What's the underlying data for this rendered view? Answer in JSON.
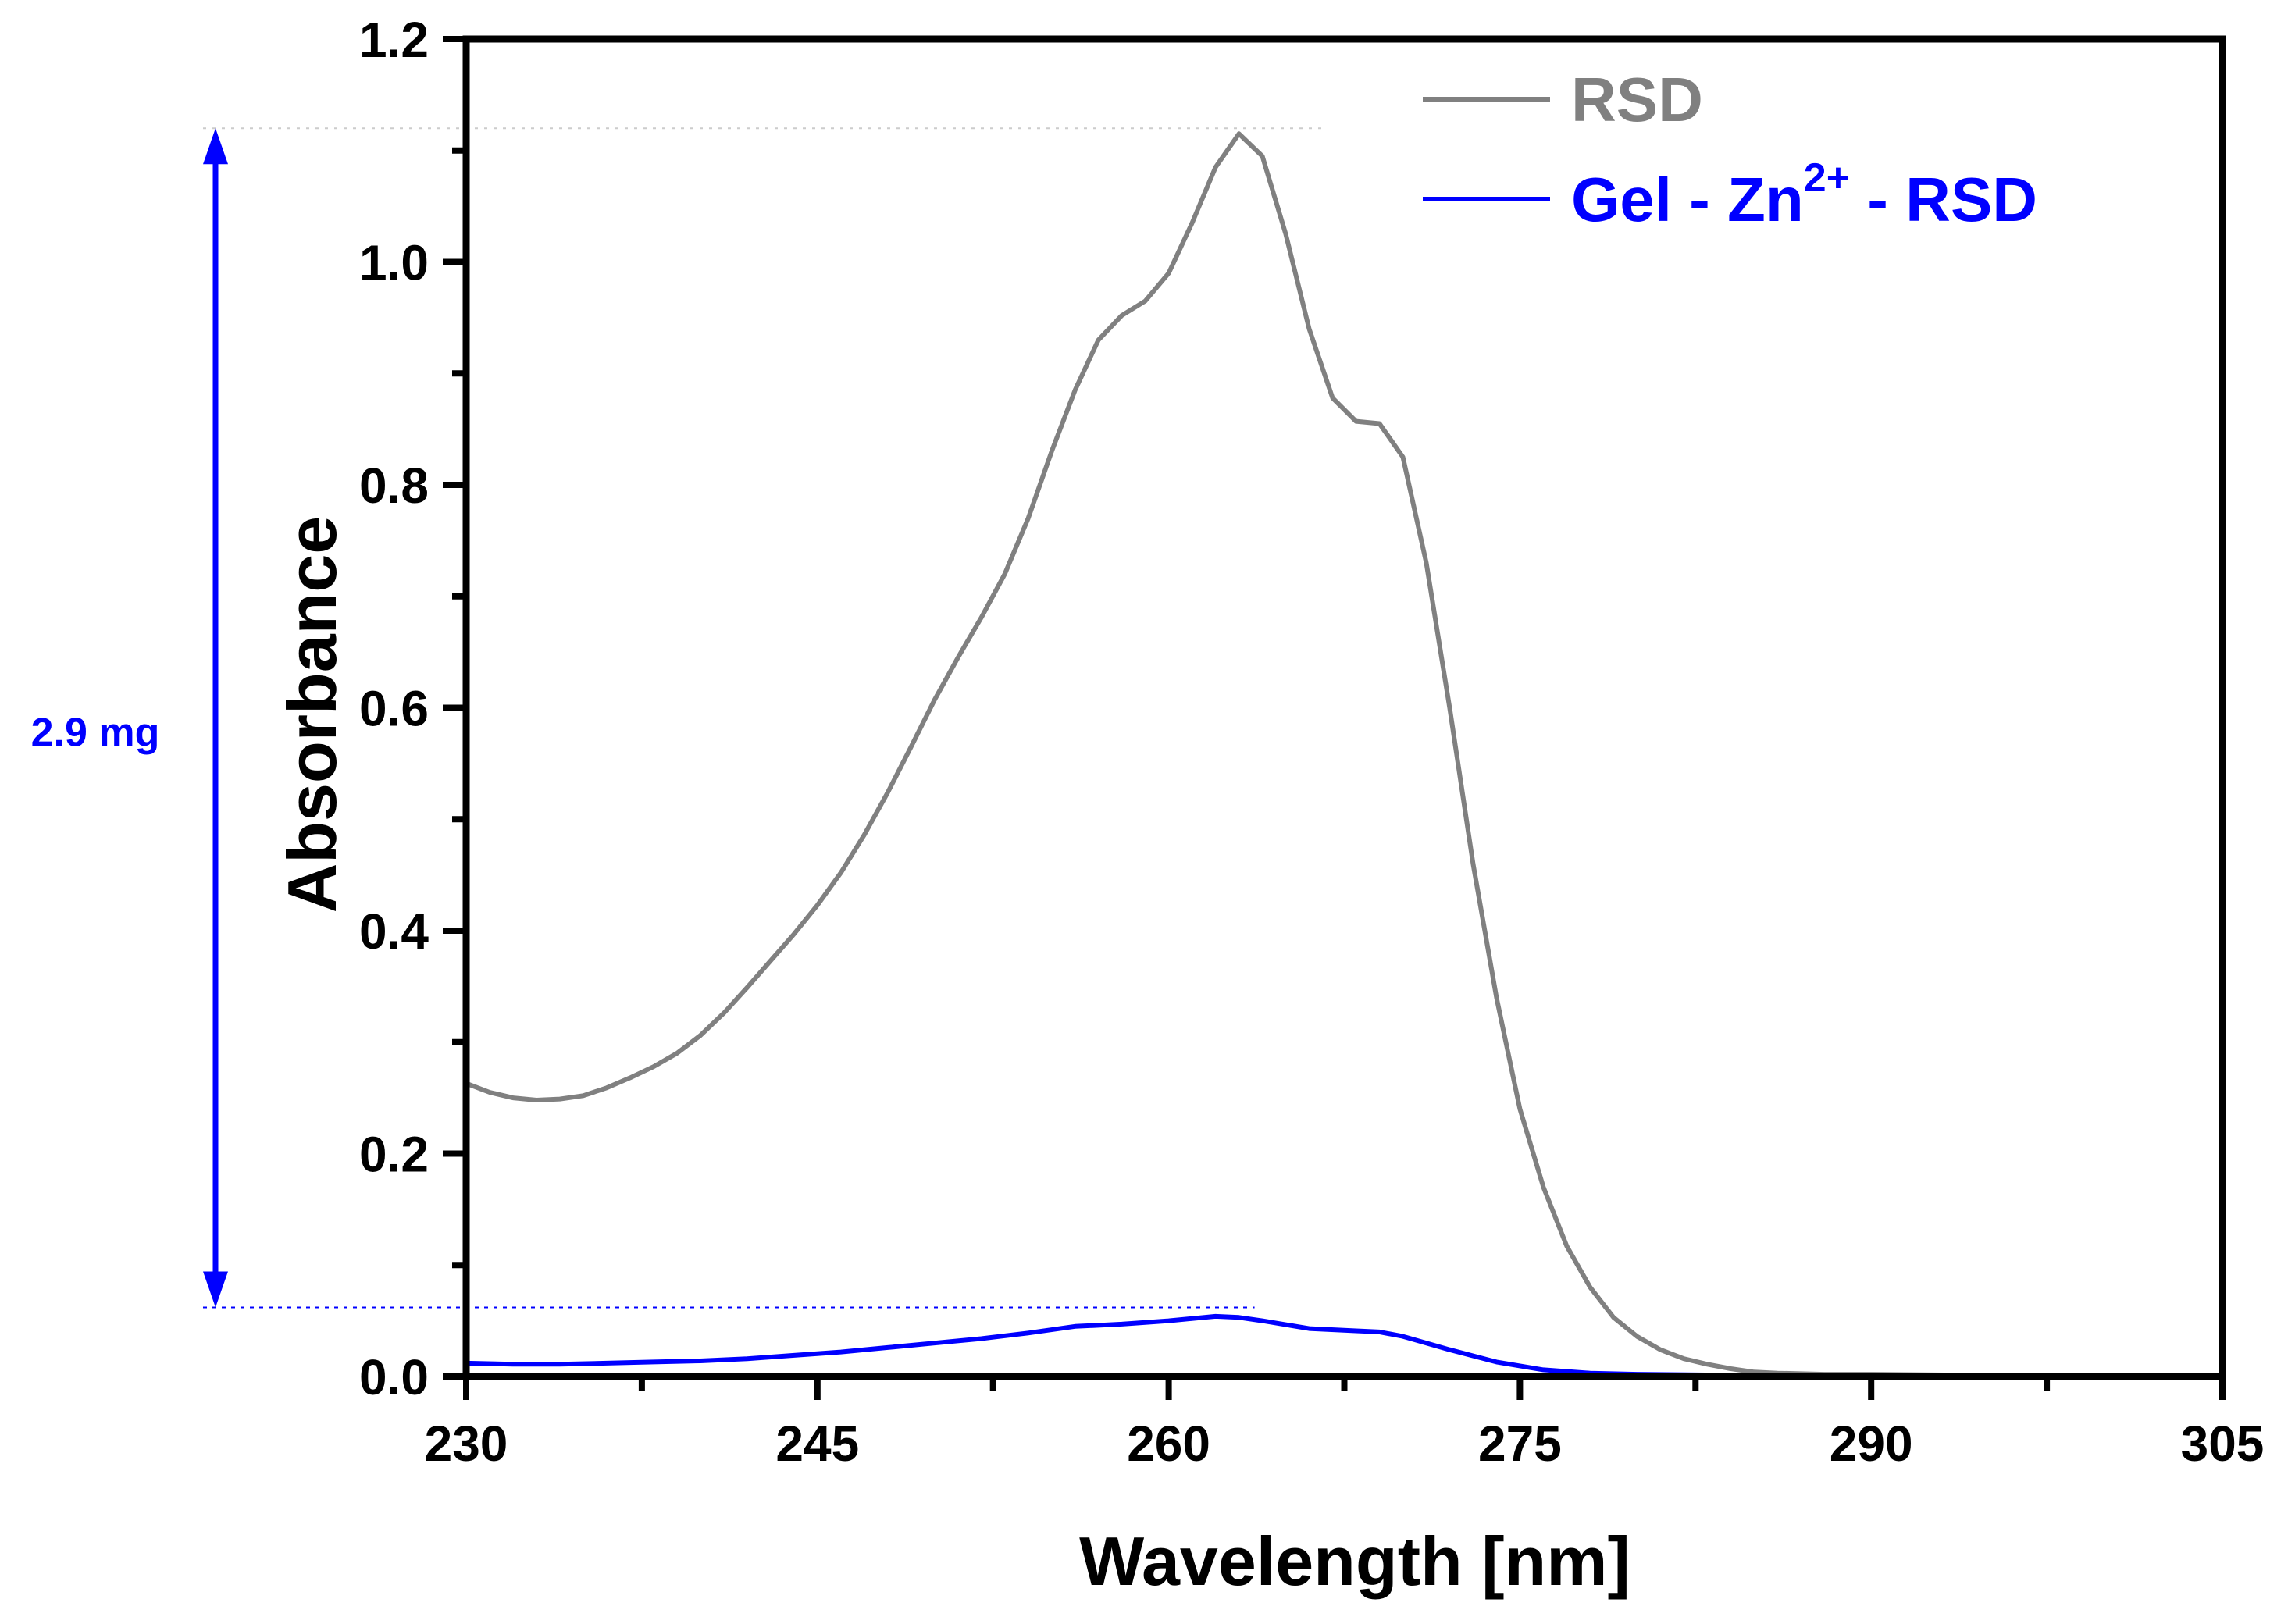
{
  "chart_data": {
    "type": "line",
    "title": "",
    "xlabel": "Wavelength [nm]",
    "ylabel": "Absorbance",
    "xlim": [
      230,
      305
    ],
    "ylim": [
      0.0,
      1.2
    ],
    "xticks": [
      230,
      245,
      260,
      275,
      290,
      305
    ],
    "xtick_labels": [
      "230",
      "245",
      "260",
      "275",
      "290",
      "305"
    ],
    "yticks": [
      0.0,
      0.2,
      0.4,
      0.6,
      0.8,
      1.0,
      1.2
    ],
    "ytick_labels": [
      "0.0",
      "0.2",
      "0.4",
      "0.6",
      "0.8",
      "1.0",
      "1.2"
    ],
    "grid": false,
    "legend_position": "top-right",
    "series": [
      {
        "name": "RSD",
        "color": "#808080",
        "points": [
          [
            230,
            0.263
          ],
          [
            231,
            0.255
          ],
          [
            232,
            0.25
          ],
          [
            233,
            0.248
          ],
          [
            234,
            0.249
          ],
          [
            235,
            0.252
          ],
          [
            236,
            0.259
          ],
          [
            237,
            0.268
          ],
          [
            238,
            0.278
          ],
          [
            239,
            0.29
          ],
          [
            240,
            0.306
          ],
          [
            241,
            0.326
          ],
          [
            242,
            0.349
          ],
          [
            243,
            0.373
          ],
          [
            244,
            0.397
          ],
          [
            245,
            0.423
          ],
          [
            246,
            0.452
          ],
          [
            247,
            0.486
          ],
          [
            248,
            0.524
          ],
          [
            249,
            0.565
          ],
          [
            250,
            0.607
          ],
          [
            251,
            0.645
          ],
          [
            252,
            0.681
          ],
          [
            253,
            0.72
          ],
          [
            254,
            0.77
          ],
          [
            255,
            0.83
          ],
          [
            256,
            0.885
          ],
          [
            257,
            0.93
          ],
          [
            258,
            0.952
          ],
          [
            259,
            0.965
          ],
          [
            260,
            0.99
          ],
          [
            261,
            1.035
          ],
          [
            262,
            1.085
          ],
          [
            263,
            1.115
          ],
          [
            264,
            1.095
          ],
          [
            265,
            1.025
          ],
          [
            266,
            0.94
          ],
          [
            267,
            0.878
          ],
          [
            268,
            0.857
          ],
          [
            269,
            0.855
          ],
          [
            270,
            0.825
          ],
          [
            271,
            0.73
          ],
          [
            272,
            0.6
          ],
          [
            273,
            0.46
          ],
          [
            274,
            0.34
          ],
          [
            275,
            0.24
          ],
          [
            276,
            0.17
          ],
          [
            277,
            0.117
          ],
          [
            278,
            0.08
          ],
          [
            279,
            0.053
          ],
          [
            280,
            0.036
          ],
          [
            281,
            0.024
          ],
          [
            282,
            0.016
          ],
          [
            283,
            0.011
          ],
          [
            284,
            0.007
          ],
          [
            285,
            0.004
          ],
          [
            286,
            0.003
          ],
          [
            288,
            0.002
          ],
          [
            290,
            0.002
          ],
          [
            295,
            0.001
          ],
          [
            300,
            0.001
          ],
          [
            305,
            0.001
          ]
        ]
      },
      {
        "name": "Gel - Zn",
        "name_sup": "2+",
        "name_suffix": " - RSD",
        "color": "#0000ff",
        "points": [
          [
            230,
            0.012
          ],
          [
            232,
            0.011
          ],
          [
            234,
            0.011
          ],
          [
            236,
            0.012
          ],
          [
            238,
            0.013
          ],
          [
            240,
            0.014
          ],
          [
            242,
            0.016
          ],
          [
            244,
            0.019
          ],
          [
            246,
            0.022
          ],
          [
            248,
            0.026
          ],
          [
            250,
            0.03
          ],
          [
            252,
            0.034
          ],
          [
            254,
            0.039
          ],
          [
            256,
            0.045
          ],
          [
            258,
            0.047
          ],
          [
            260,
            0.05
          ],
          [
            262,
            0.054
          ],
          [
            263,
            0.053
          ],
          [
            264,
            0.05
          ],
          [
            266,
            0.043
          ],
          [
            268,
            0.041
          ],
          [
            269,
            0.04
          ],
          [
            270,
            0.036
          ],
          [
            272,
            0.024
          ],
          [
            274,
            0.013
          ],
          [
            276,
            0.006
          ],
          [
            278,
            0.003
          ],
          [
            280,
            0.002
          ],
          [
            285,
            0.001
          ],
          [
            290,
            0.001
          ],
          [
            300,
            0.001
          ],
          [
            305,
            0.001
          ]
        ]
      }
    ],
    "annotation": {
      "label": "2.9 mg",
      "color": "#0000ff",
      "upper_y": 1.12,
      "lower_y": 0.062,
      "guide_x_end": 263
    }
  }
}
